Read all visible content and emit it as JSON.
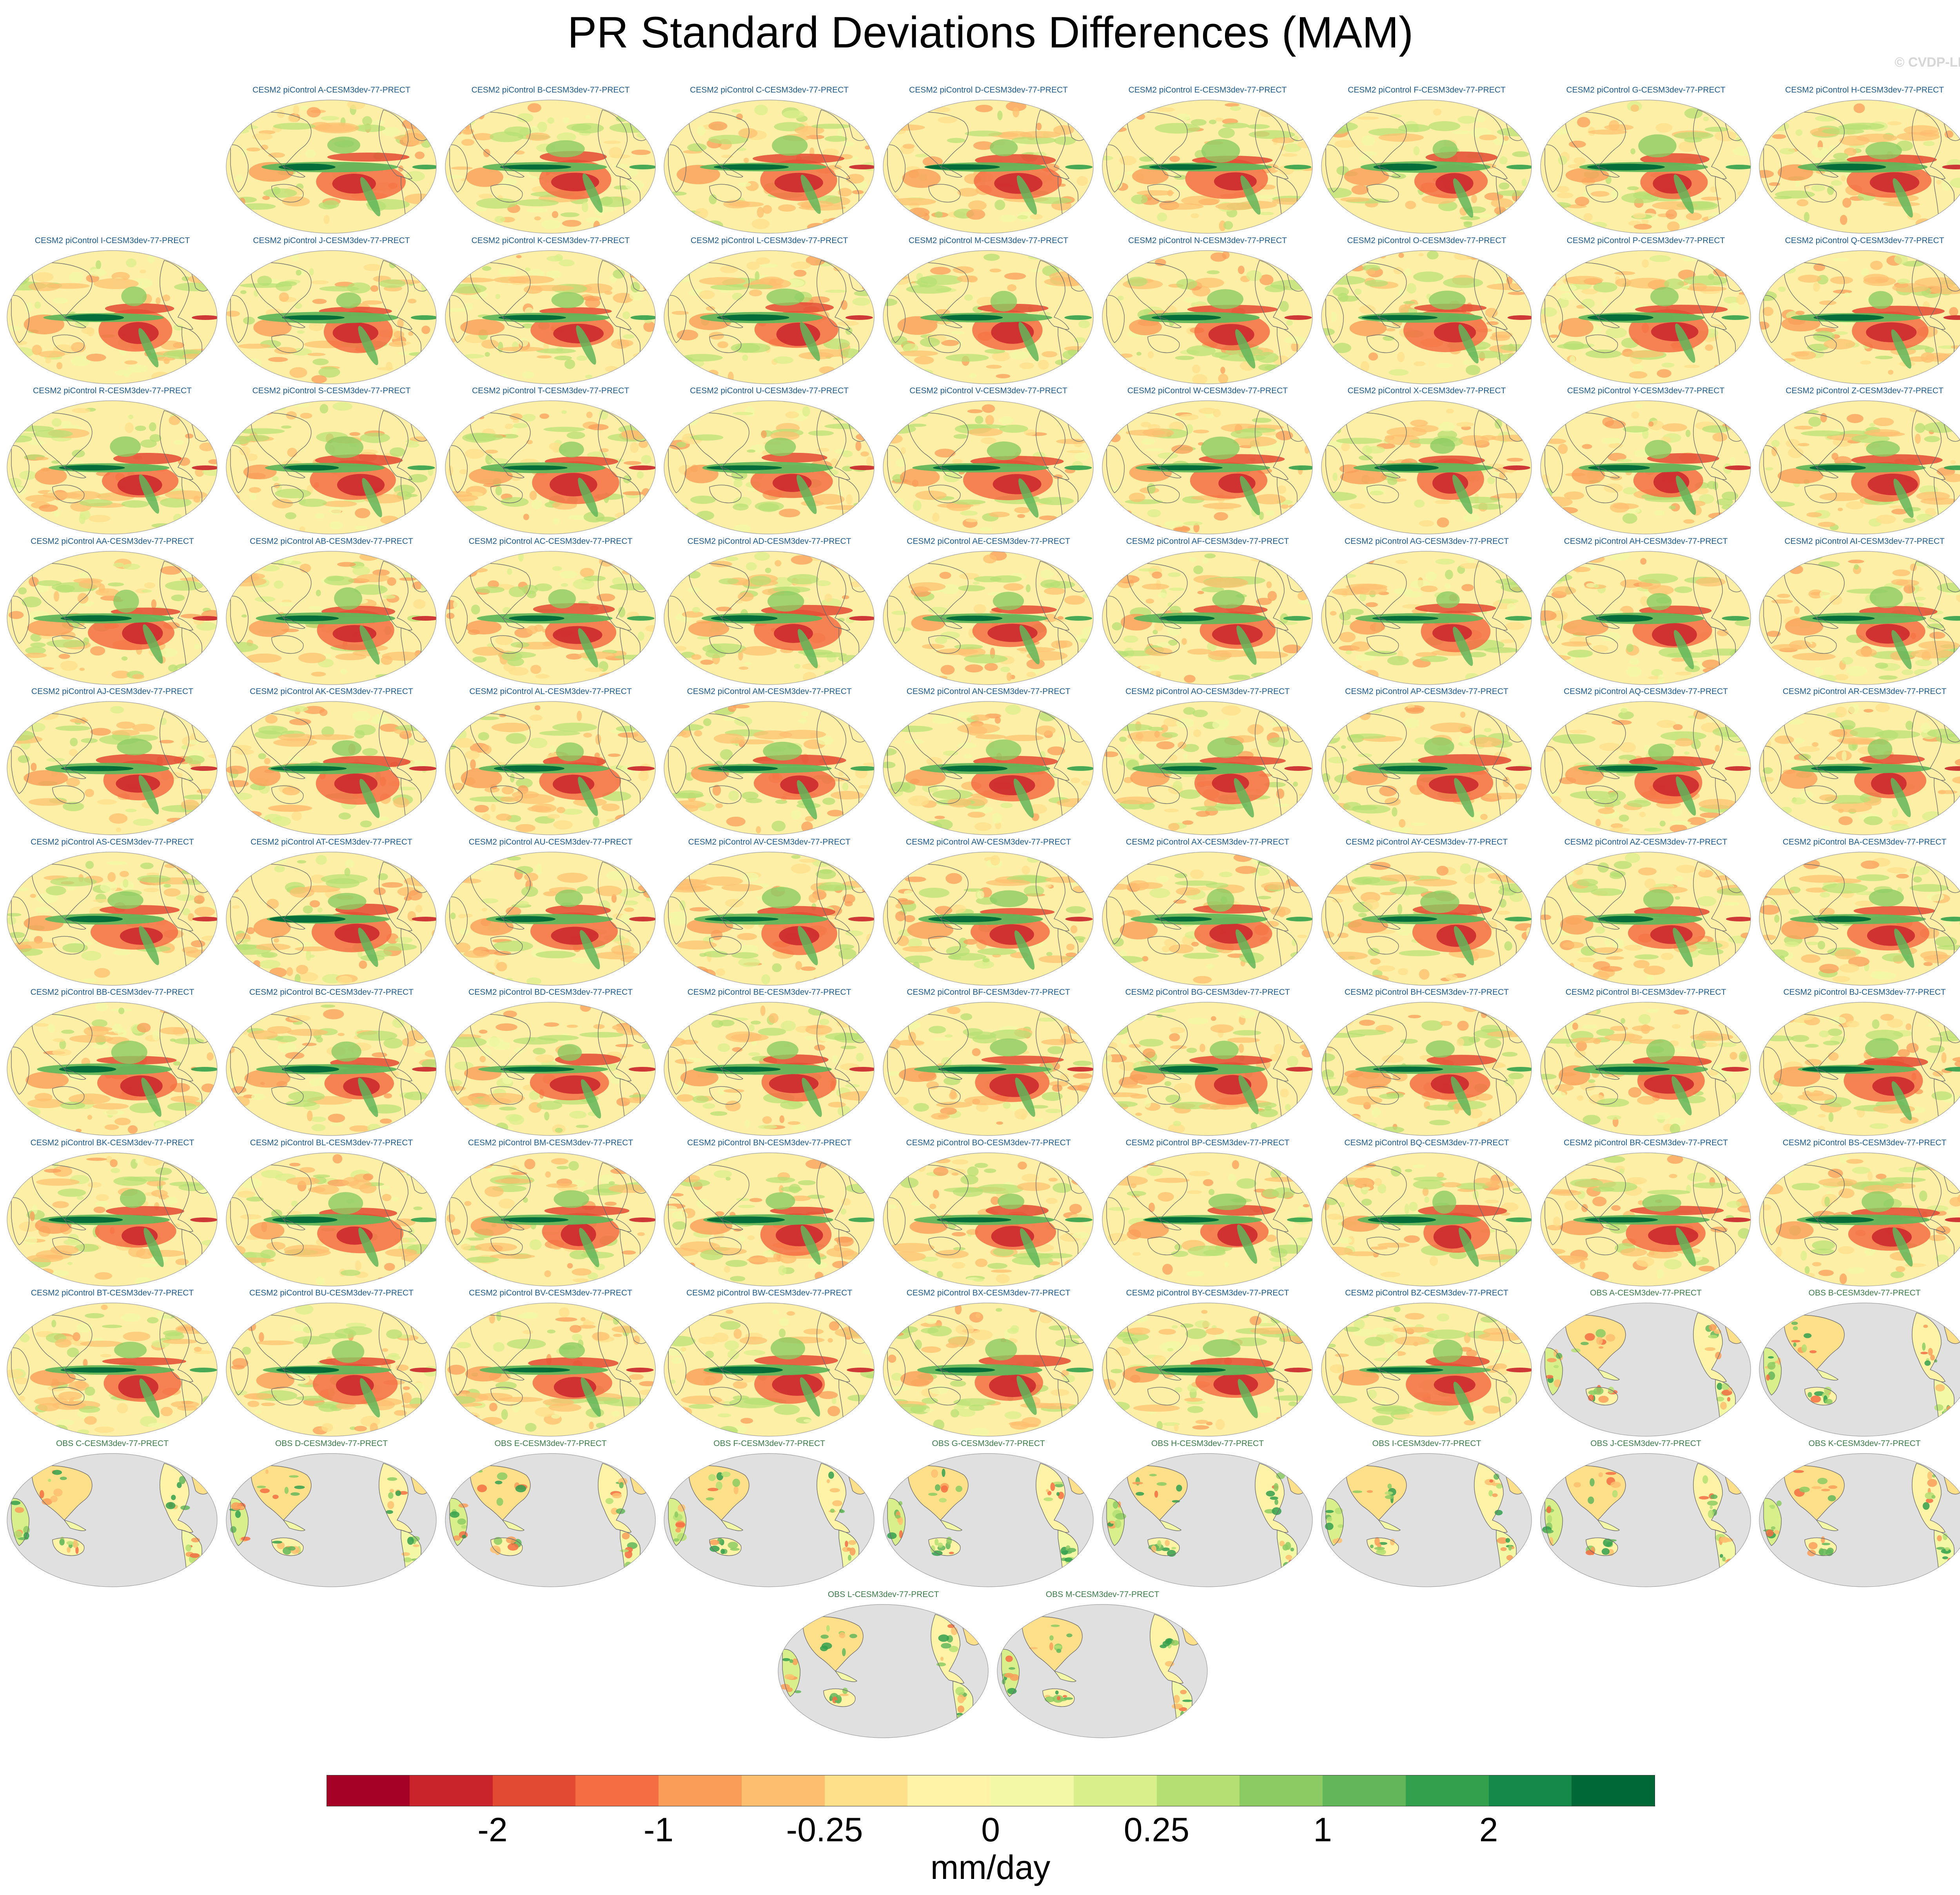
{
  "title": "PR Standard Deviations Differences (MAM)",
  "watermark": "© CVDP-LE",
  "panels": [
    {
      "label": "CESM2 piControl A-CESM3dev-77-PRECT",
      "kind": "model"
    },
    {
      "label": "CESM2 piControl B-CESM3dev-77-PRECT",
      "kind": "model"
    },
    {
      "label": "CESM2 piControl C-CESM3dev-77-PRECT",
      "kind": "model"
    },
    {
      "label": "CESM2 piControl D-CESM3dev-77-PRECT",
      "kind": "model"
    },
    {
      "label": "CESM2 piControl E-CESM3dev-77-PRECT",
      "kind": "model"
    },
    {
      "label": "CESM2 piControl F-CESM3dev-77-PRECT",
      "kind": "model"
    },
    {
      "label": "CESM2 piControl G-CESM3dev-77-PRECT",
      "kind": "model"
    },
    {
      "label": "CESM2 piControl H-CESM3dev-77-PRECT",
      "kind": "model"
    },
    {
      "label": "CESM2 piControl I-CESM3dev-77-PRECT",
      "kind": "model"
    },
    {
      "label": "CESM2 piControl J-CESM3dev-77-PRECT",
      "kind": "model"
    },
    {
      "label": "CESM2 piControl K-CESM3dev-77-PRECT",
      "kind": "model"
    },
    {
      "label": "CESM2 piControl L-CESM3dev-77-PRECT",
      "kind": "model"
    },
    {
      "label": "CESM2 piControl M-CESM3dev-77-PRECT",
      "kind": "model"
    },
    {
      "label": "CESM2 piControl N-CESM3dev-77-PRECT",
      "kind": "model"
    },
    {
      "label": "CESM2 piControl O-CESM3dev-77-PRECT",
      "kind": "model"
    },
    {
      "label": "CESM2 piControl P-CESM3dev-77-PRECT",
      "kind": "model"
    },
    {
      "label": "CESM2 piControl Q-CESM3dev-77-PRECT",
      "kind": "model"
    },
    {
      "label": "CESM2 piControl R-CESM3dev-77-PRECT",
      "kind": "model"
    },
    {
      "label": "CESM2 piControl S-CESM3dev-77-PRECT",
      "kind": "model"
    },
    {
      "label": "CESM2 piControl T-CESM3dev-77-PRECT",
      "kind": "model"
    },
    {
      "label": "CESM2 piControl U-CESM3dev-77-PRECT",
      "kind": "model"
    },
    {
      "label": "CESM2 piControl V-CESM3dev-77-PRECT",
      "kind": "model"
    },
    {
      "label": "CESM2 piControl W-CESM3dev-77-PRECT",
      "kind": "model"
    },
    {
      "label": "CESM2 piControl X-CESM3dev-77-PRECT",
      "kind": "model"
    },
    {
      "label": "CESM2 piControl Y-CESM3dev-77-PRECT",
      "kind": "model"
    },
    {
      "label": "CESM2 piControl Z-CESM3dev-77-PRECT",
      "kind": "model"
    },
    {
      "label": "CESM2 piControl AA-CESM3dev-77-PRECT",
      "kind": "model"
    },
    {
      "label": "CESM2 piControl AB-CESM3dev-77-PRECT",
      "kind": "model"
    },
    {
      "label": "CESM2 piControl AC-CESM3dev-77-PRECT",
      "kind": "model"
    },
    {
      "label": "CESM2 piControl AD-CESM3dev-77-PRECT",
      "kind": "model"
    },
    {
      "label": "CESM2 piControl AE-CESM3dev-77-PRECT",
      "kind": "model"
    },
    {
      "label": "CESM2 piControl AF-CESM3dev-77-PRECT",
      "kind": "model"
    },
    {
      "label": "CESM2 piControl AG-CESM3dev-77-PRECT",
      "kind": "model"
    },
    {
      "label": "CESM2 piControl AH-CESM3dev-77-PRECT",
      "kind": "model"
    },
    {
      "label": "CESM2 piControl AI-CESM3dev-77-PRECT",
      "kind": "model"
    },
    {
      "label": "CESM2 piControl AJ-CESM3dev-77-PRECT",
      "kind": "model"
    },
    {
      "label": "CESM2 piControl AK-CESM3dev-77-PRECT",
      "kind": "model"
    },
    {
      "label": "CESM2 piControl AL-CESM3dev-77-PRECT",
      "kind": "model"
    },
    {
      "label": "CESM2 piControl AM-CESM3dev-77-PRECT",
      "kind": "model"
    },
    {
      "label": "CESM2 piControl AN-CESM3dev-77-PRECT",
      "kind": "model"
    },
    {
      "label": "CESM2 piControl AO-CESM3dev-77-PRECT",
      "kind": "model"
    },
    {
      "label": "CESM2 piControl AP-CESM3dev-77-PRECT",
      "kind": "model"
    },
    {
      "label": "CESM2 piControl AQ-CESM3dev-77-PRECT",
      "kind": "model"
    },
    {
      "label": "CESM2 piControl AR-CESM3dev-77-PRECT",
      "kind": "model"
    },
    {
      "label": "CESM2 piControl AS-CESM3dev-77-PRECT",
      "kind": "model"
    },
    {
      "label": "CESM2 piControl AT-CESM3dev-77-PRECT",
      "kind": "model"
    },
    {
      "label": "CESM2 piControl AU-CESM3dev-77-PRECT",
      "kind": "model"
    },
    {
      "label": "CESM2 piControl AV-CESM3dev-77-PRECT",
      "kind": "model"
    },
    {
      "label": "CESM2 piControl AW-CESM3dev-77-PRECT",
      "kind": "model"
    },
    {
      "label": "CESM2 piControl AX-CESM3dev-77-PRECT",
      "kind": "model"
    },
    {
      "label": "CESM2 piControl AY-CESM3dev-77-PRECT",
      "kind": "model"
    },
    {
      "label": "CESM2 piControl AZ-CESM3dev-77-PRECT",
      "kind": "model"
    },
    {
      "label": "CESM2 piControl BA-CESM3dev-77-PRECT",
      "kind": "model"
    },
    {
      "label": "CESM2 piControl BB-CESM3dev-77-PRECT",
      "kind": "model"
    },
    {
      "label": "CESM2 piControl BC-CESM3dev-77-PRECT",
      "kind": "model"
    },
    {
      "label": "CESM2 piControl BD-CESM3dev-77-PRECT",
      "kind": "model"
    },
    {
      "label": "CESM2 piControl BE-CESM3dev-77-PRECT",
      "kind": "model"
    },
    {
      "label": "CESM2 piControl BF-CESM3dev-77-PRECT",
      "kind": "model"
    },
    {
      "label": "CESM2 piControl BG-CESM3dev-77-PRECT",
      "kind": "model"
    },
    {
      "label": "CESM2 piControl BH-CESM3dev-77-PRECT",
      "kind": "model"
    },
    {
      "label": "CESM2 piControl BI-CESM3dev-77-PRECT",
      "kind": "model"
    },
    {
      "label": "CESM2 piControl BJ-CESM3dev-77-PRECT",
      "kind": "model"
    },
    {
      "label": "CESM2 piControl BK-CESM3dev-77-PRECT",
      "kind": "model"
    },
    {
      "label": "CESM2 piControl BL-CESM3dev-77-PRECT",
      "kind": "model"
    },
    {
      "label": "CESM2 piControl BM-CESM3dev-77-PRECT",
      "kind": "model"
    },
    {
      "label": "CESM2 piControl BN-CESM3dev-77-PRECT",
      "kind": "model"
    },
    {
      "label": "CESM2 piControl BO-CESM3dev-77-PRECT",
      "kind": "model"
    },
    {
      "label": "CESM2 piControl BP-CESM3dev-77-PRECT",
      "kind": "model"
    },
    {
      "label": "CESM2 piControl BQ-CESM3dev-77-PRECT",
      "kind": "model"
    },
    {
      "label": "CESM2 piControl BR-CESM3dev-77-PRECT",
      "kind": "model"
    },
    {
      "label": "CESM2 piControl BS-CESM3dev-77-PRECT",
      "kind": "model"
    },
    {
      "label": "CESM2 piControl BT-CESM3dev-77-PRECT",
      "kind": "model"
    },
    {
      "label": "CESM2 piControl BU-CESM3dev-77-PRECT",
      "kind": "model"
    },
    {
      "label": "CESM2 piControl BV-CESM3dev-77-PRECT",
      "kind": "model"
    },
    {
      "label": "CESM2 piControl BW-CESM3dev-77-PRECT",
      "kind": "model"
    },
    {
      "label": "CESM2 piControl BX-CESM3dev-77-PRECT",
      "kind": "model"
    },
    {
      "label": "CESM2 piControl BY-CESM3dev-77-PRECT",
      "kind": "model"
    },
    {
      "label": "CESM2 piControl BZ-CESM3dev-77-PRECT",
      "kind": "model"
    },
    {
      "label": "OBS A-CESM3dev-77-PRECT",
      "kind": "obs"
    },
    {
      "label": "OBS B-CESM3dev-77-PRECT",
      "kind": "obs"
    },
    {
      "label": "OBS C-CESM3dev-77-PRECT",
      "kind": "obs"
    },
    {
      "label": "OBS D-CESM3dev-77-PRECT",
      "kind": "obs"
    },
    {
      "label": "OBS E-CESM3dev-77-PRECT",
      "kind": "obs"
    },
    {
      "label": "OBS F-CESM3dev-77-PRECT",
      "kind": "obs"
    },
    {
      "label": "OBS G-CESM3dev-77-PRECT",
      "kind": "obs"
    },
    {
      "label": "OBS H-CESM3dev-77-PRECT",
      "kind": "obs"
    },
    {
      "label": "OBS I-CESM3dev-77-PRECT",
      "kind": "obs"
    },
    {
      "label": "OBS J-CESM3dev-77-PRECT",
      "kind": "obs"
    },
    {
      "label": "OBS K-CESM3dev-77-PRECT",
      "kind": "obs"
    },
    {
      "label": "OBS L-CESM3dev-77-PRECT",
      "kind": "obs"
    },
    {
      "label": "OBS M-CESM3dev-77-PRECT",
      "kind": "obs"
    }
  ],
  "colorbar": {
    "colors": [
      "#a50026",
      "#c9242b",
      "#e34a33",
      "#f46d43",
      "#f99d59",
      "#fdbf6f",
      "#fee08b",
      "#fff3a8",
      "#f2f8a6",
      "#d9ef8b",
      "#b5df73",
      "#8ccb63",
      "#63b65a",
      "#33a04d",
      "#14894a",
      "#006837"
    ],
    "tick_labels": [
      "-2",
      "-1",
      "-0.25",
      "0",
      "0.25",
      "1",
      "2"
    ],
    "tick_values": [
      -2,
      -1,
      -0.25,
      0,
      0.25,
      1,
      2
    ],
    "units": "mm/day"
  },
  "map_colors": {
    "ocean_gray": "#e0e0e0",
    "coast": "#6b6b6b",
    "neutral": "#fdf0a6"
  }
}
